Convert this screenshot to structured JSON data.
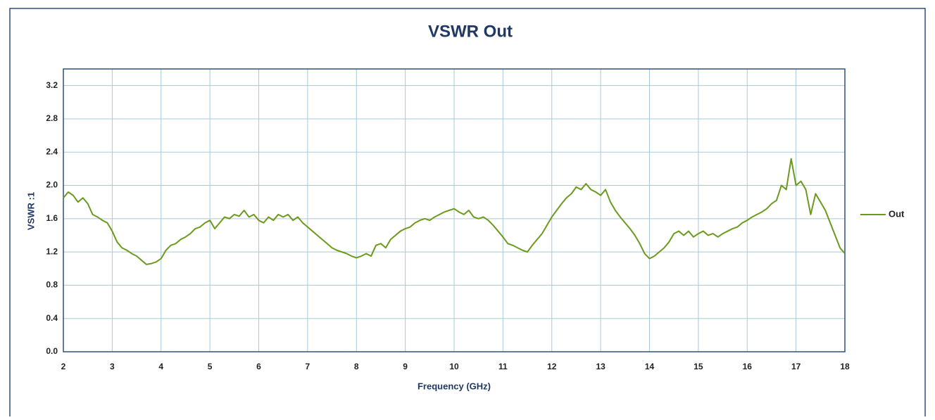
{
  "chart_data": {
    "type": "line",
    "title": "VSWR Out",
    "xlabel": "Frequency (GHz)",
    "ylabel": "VSWR :1",
    "x": [
      2.0,
      2.1,
      2.2,
      2.3,
      2.4,
      2.5,
      2.6,
      2.7,
      2.8,
      2.9,
      3.0,
      3.1,
      3.2,
      3.3,
      3.4,
      3.5,
      3.6,
      3.7,
      3.8,
      3.9,
      4.0,
      4.1,
      4.2,
      4.3,
      4.4,
      4.5,
      4.6,
      4.7,
      4.8,
      4.9,
      5.0,
      5.1,
      5.2,
      5.3,
      5.4,
      5.5,
      5.6,
      5.7,
      5.8,
      5.9,
      6.0,
      6.1,
      6.2,
      6.3,
      6.4,
      6.5,
      6.6,
      6.7,
      6.8,
      6.9,
      7.0,
      7.1,
      7.2,
      7.3,
      7.4,
      7.5,
      7.6,
      7.7,
      7.8,
      7.9,
      8.0,
      8.1,
      8.2,
      8.3,
      8.4,
      8.5,
      8.6,
      8.7,
      8.8,
      8.9,
      9.0,
      9.1,
      9.2,
      9.3,
      9.4,
      9.5,
      9.6,
      9.7,
      9.8,
      9.9,
      10.0,
      10.1,
      10.2,
      10.3,
      10.4,
      10.5,
      10.6,
      10.7,
      10.8,
      10.9,
      11.0,
      11.1,
      11.2,
      11.3,
      11.4,
      11.5,
      11.6,
      11.7,
      11.8,
      11.9,
      12.0,
      12.1,
      12.2,
      12.3,
      12.4,
      12.5,
      12.6,
      12.7,
      12.8,
      12.9,
      13.0,
      13.1,
      13.2,
      13.3,
      13.4,
      13.5,
      13.6,
      13.7,
      13.8,
      13.9,
      14.0,
      14.1,
      14.2,
      14.3,
      14.4,
      14.5,
      14.6,
      14.7,
      14.8,
      14.9,
      15.0,
      15.1,
      15.2,
      15.3,
      15.4,
      15.5,
      15.6,
      15.7,
      15.8,
      15.9,
      16.0,
      16.1,
      16.2,
      16.3,
      16.4,
      16.5,
      16.6,
      16.7,
      16.8,
      16.9,
      17.0,
      17.1,
      17.2,
      17.3,
      17.4,
      17.5,
      17.6,
      17.7,
      17.8,
      17.9,
      18.0
    ],
    "series": [
      {
        "name": "Out",
        "color": "#6b9a1e",
        "values": [
          1.85,
          1.92,
          1.88,
          1.8,
          1.85,
          1.78,
          1.65,
          1.62,
          1.58,
          1.55,
          1.45,
          1.32,
          1.25,
          1.22,
          1.18,
          1.15,
          1.1,
          1.05,
          1.06,
          1.08,
          1.12,
          1.22,
          1.28,
          1.3,
          1.35,
          1.38,
          1.42,
          1.48,
          1.5,
          1.55,
          1.58,
          1.48,
          1.55,
          1.62,
          1.6,
          1.65,
          1.63,
          1.7,
          1.62,
          1.65,
          1.58,
          1.55,
          1.62,
          1.58,
          1.65,
          1.62,
          1.65,
          1.58,
          1.62,
          1.55,
          1.5,
          1.45,
          1.4,
          1.35,
          1.3,
          1.25,
          1.22,
          1.2,
          1.18,
          1.15,
          1.13,
          1.15,
          1.18,
          1.15,
          1.28,
          1.3,
          1.25,
          1.35,
          1.4,
          1.45,
          1.48,
          1.5,
          1.55,
          1.58,
          1.6,
          1.58,
          1.62,
          1.65,
          1.68,
          1.7,
          1.72,
          1.68,
          1.65,
          1.7,
          1.62,
          1.6,
          1.62,
          1.58,
          1.52,
          1.45,
          1.38,
          1.3,
          1.28,
          1.25,
          1.22,
          1.2,
          1.28,
          1.35,
          1.42,
          1.52,
          1.62,
          1.7,
          1.78,
          1.85,
          1.9,
          1.98,
          1.95,
          2.02,
          1.95,
          1.92,
          1.88,
          1.95,
          1.8,
          1.7,
          1.62,
          1.55,
          1.48,
          1.4,
          1.3,
          1.18,
          1.12,
          1.15,
          1.2,
          1.25,
          1.32,
          1.42,
          1.45,
          1.4,
          1.45,
          1.38,
          1.42,
          1.45,
          1.4,
          1.42,
          1.38,
          1.42,
          1.45,
          1.48,
          1.5,
          1.55,
          1.58,
          1.62,
          1.65,
          1.68,
          1.72,
          1.78,
          1.82,
          2.0,
          1.95,
          2.32,
          2.0,
          2.05,
          1.95,
          1.65,
          1.9,
          1.8,
          1.7,
          1.55,
          1.4,
          1.25,
          1.18
        ]
      }
    ],
    "xlim": [
      2,
      18
    ],
    "xticks": [
      2,
      3,
      4,
      5,
      6,
      7,
      8,
      9,
      10,
      11,
      12,
      13,
      14,
      15,
      16,
      17,
      18
    ],
    "ylim": [
      0,
      3.4
    ],
    "yticks": [
      {
        "value": 0,
        "label": "0.0"
      },
      0.4,
      0.8,
      1.2,
      1.6,
      {
        "value": 2,
        "label": "2.0"
      },
      2.4,
      2.8,
      3.2
    ],
    "grid": true,
    "legend": "right"
  }
}
